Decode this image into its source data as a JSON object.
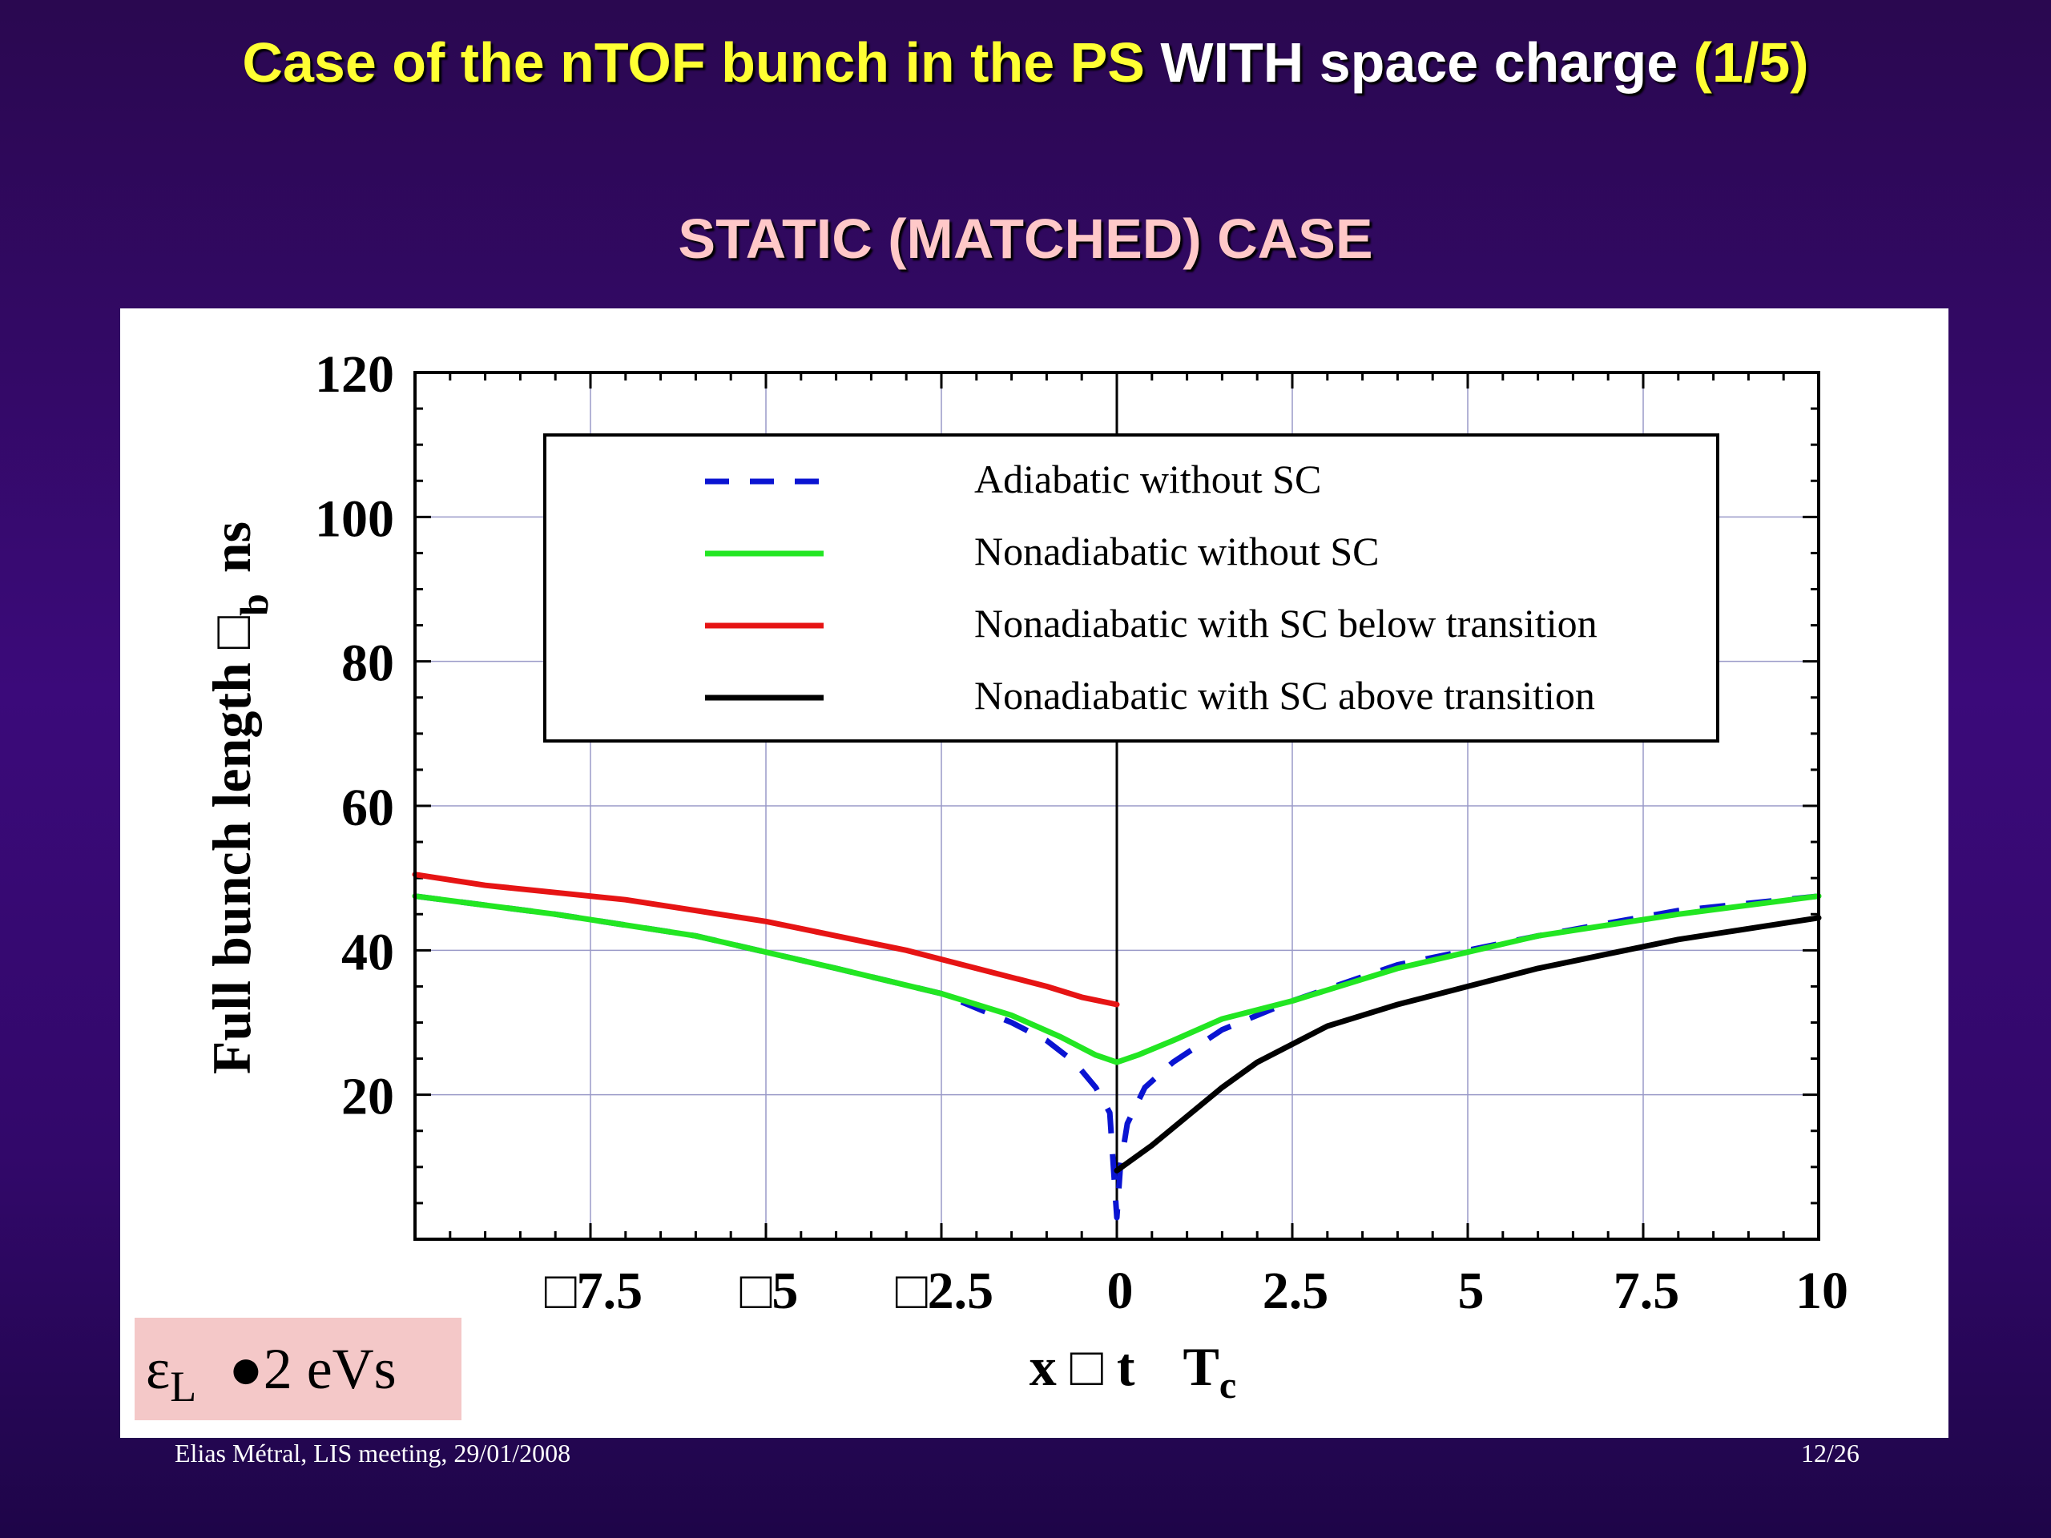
{
  "slide": {
    "title_part1": "Case of the nTOF bunch in the PS",
    "title_part2": "WITH space charge",
    "title_part3": "(1/5)",
    "subtitle": "STATIC (MATCHED) CASE",
    "emittance_symbol": "ε",
    "emittance_sub": "L",
    "emittance_value": "●2 eVs",
    "footer_left": "Elias Métral, LIS meeting, 29/01/2008",
    "footer_right": "12/26"
  },
  "colors": {
    "title_yellow": "#ffff33",
    "subtitle_pink": "#ffc8c8",
    "adiabatic": "#0a14d2",
    "nonadiabatic": "#22e622",
    "below": "#e61414",
    "above": "#000000"
  },
  "chart_data": {
    "type": "line",
    "ylabel": "Full bunch length □",
    "ylabel_sub": "b",
    "ylabel_unit": "ns",
    "xlabel_parts": [
      "x □ t",
      "T",
      "c"
    ],
    "xlim": [
      -10,
      10
    ],
    "ylim": [
      0,
      120
    ],
    "xticks": [
      {
        "value": -7.5,
        "label": "□7.5"
      },
      {
        "value": -5,
        "label": "□5"
      },
      {
        "value": -2.5,
        "label": "□2.5"
      },
      {
        "value": 0,
        "label": "0"
      },
      {
        "value": 2.5,
        "label": "2.5"
      },
      {
        "value": 5,
        "label": "5"
      },
      {
        "value": 7.5,
        "label": "7.5"
      },
      {
        "value": 10,
        "label": "10"
      }
    ],
    "yticks": [
      20,
      40,
      60,
      80,
      100,
      120
    ],
    "grid": true,
    "legend_position": "top-center",
    "series": [
      {
        "name": "Adiabatic without SC",
        "style": "dashed",
        "color_key": "adiabatic",
        "x": [
          -10,
          -8,
          -6,
          -4,
          -2.5,
          -2,
          -1.5,
          -1,
          -0.6,
          -0.3,
          -0.1,
          0,
          0.05,
          0.15,
          0.4,
          0.8,
          1.5,
          2.5,
          4,
          6,
          8,
          10
        ],
        "y": [
          47.5,
          45,
          42,
          37.5,
          34,
          32,
          30,
          27.5,
          24.5,
          21,
          17.5,
          3,
          10,
          16,
          21,
          24.5,
          29,
          33,
          38,
          42,
          45.5,
          47.5
        ]
      },
      {
        "name": "Nonadiabatic without SC",
        "style": "solid",
        "color_key": "nonadiabatic",
        "x": [
          -10,
          -8,
          -6,
          -4,
          -2.5,
          -1.5,
          -0.8,
          -0.3,
          0,
          0.3,
          0.8,
          1.5,
          2.5,
          4,
          6,
          8,
          10
        ],
        "y": [
          47.5,
          45,
          42,
          37.5,
          34,
          31,
          28,
          25.5,
          24.5,
          25.5,
          27.5,
          30.5,
          33,
          37.5,
          42,
          45,
          47.5
        ]
      },
      {
        "name": "Nonadiabatic with SC below transition",
        "style": "solid",
        "color_key": "below",
        "x": [
          -10,
          -9,
          -8,
          -7,
          -6,
          -5,
          -4,
          -3,
          -2,
          -1,
          -0.5,
          0
        ],
        "y": [
          50.5,
          49,
          48,
          47,
          45.5,
          44,
          42,
          40,
          37.5,
          35,
          33.5,
          32.5
        ]
      },
      {
        "name": "Nonadiabatic with SC above transition",
        "style": "solid",
        "color_key": "above",
        "x": [
          0,
          0.5,
          1,
          1.5,
          2,
          3,
          4,
          5,
          6,
          7,
          8,
          9,
          10
        ],
        "y": [
          9.5,
          13,
          17,
          21,
          24.5,
          29.5,
          32.5,
          35,
          37.5,
          39.5,
          41.5,
          43,
          44.5
        ]
      }
    ]
  }
}
